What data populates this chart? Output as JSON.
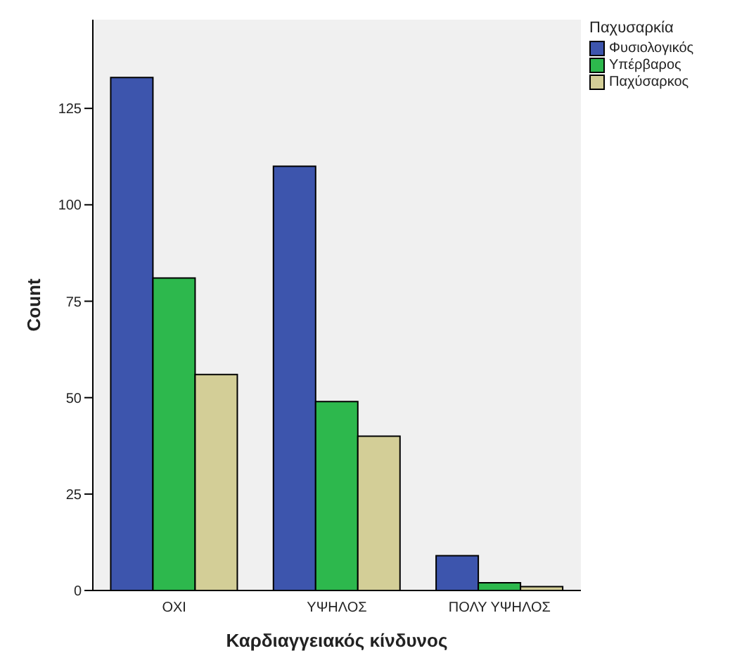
{
  "chart_data": {
    "type": "bar",
    "xlabel": "Καρδιαγγειακός κίνδυνος",
    "ylabel": "Count",
    "legend_title": "Παχυσαρκία",
    "categories": [
      "ΟΧΙ",
      "ΥΨΗΛΟΣ",
      "ΠΟΛΥ ΥΨΗΛΟΣ"
    ],
    "series": [
      {
        "name": "Φυσιολογικός",
        "color": "#3d55ad",
        "values": [
          133,
          110,
          9
        ]
      },
      {
        "name": "Υπέρβαρος",
        "color": "#2db84d",
        "values": [
          81,
          49,
          2
        ]
      },
      {
        "name": "Παχύσαρκος",
        "color": "#d3ce97",
        "values": [
          56,
          40,
          1
        ]
      }
    ],
    "ylim": [
      0,
      148
    ],
    "yticks": [
      0,
      25,
      50,
      75,
      100,
      125
    ],
    "legend": "top right"
  }
}
